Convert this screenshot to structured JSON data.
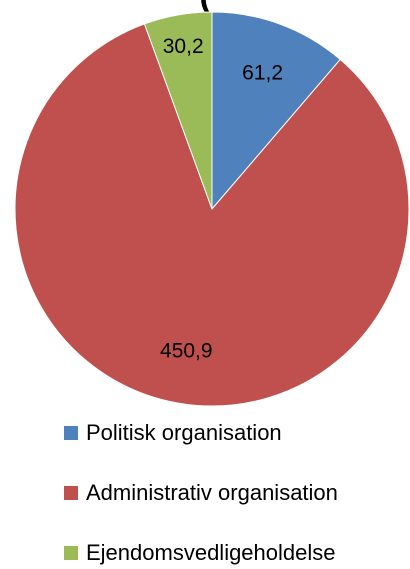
{
  "chart_data": {
    "type": "pie",
    "title": "(",
    "categories": [
      "Politisk organisation",
      "Administrativ organisation",
      "Ejendomsvedligeholdelse"
    ],
    "values": [
      61.2,
      450.9,
      30.2
    ],
    "data_labels": [
      "61,2",
      "450,9",
      "30,2"
    ],
    "colors": [
      "#4f81bd",
      "#c0504d",
      "#9bbb59"
    ],
    "start_angle_deg": 0,
    "direction": "clockwise",
    "legend_position": "bottom"
  }
}
